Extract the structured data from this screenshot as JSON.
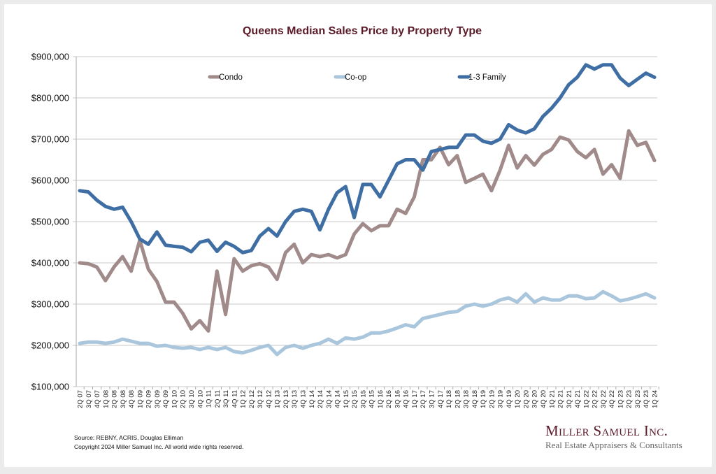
{
  "chart_data": {
    "type": "line",
    "title": "Queens Median Sales Price by Property Type",
    "xlabel": "",
    "ylabel": "",
    "ylim": [
      100000,
      900000
    ],
    "yticks": [
      100000,
      200000,
      300000,
      400000,
      500000,
      600000,
      700000,
      800000,
      900000
    ],
    "ytick_labels": [
      "$100,000",
      "$200,000",
      "$300,000",
      "$400,000",
      "$500,000",
      "$600,000",
      "$700,000",
      "$800,000",
      "$900,000"
    ],
    "grid": true,
    "legend_position": "top",
    "categories": [
      "2Q 07",
      "3Q 07",
      "4Q 07",
      "1Q 08",
      "2Q 08",
      "3Q 08",
      "4Q 08",
      "1Q 09",
      "2Q 09",
      "3Q 09",
      "4Q 09",
      "1Q 10",
      "2Q 10",
      "3Q 10",
      "4Q 10",
      "1Q 11",
      "2Q 11",
      "3Q 11",
      "4Q 11",
      "1Q 12",
      "2Q 12",
      "3Q 12",
      "4Q 12",
      "1Q 13",
      "2Q 13",
      "3Q 13",
      "4Q 13",
      "1Q 14",
      "2Q 14",
      "3Q 14",
      "4Q 14",
      "1Q 15",
      "2Q 15",
      "3Q 15",
      "4Q 15",
      "1Q 16",
      "2Q 16",
      "3Q 16",
      "4Q 16",
      "1Q 17",
      "2Q 17",
      "3Q 17",
      "4Q 17",
      "1Q 18",
      "2Q 18",
      "3Q 18",
      "4Q 18",
      "1Q 19",
      "2Q 19",
      "3Q 19",
      "4Q 19",
      "1Q 20",
      "2Q 20",
      "3Q 20",
      "4Q 20",
      "1Q 21",
      "2Q 21",
      "3Q 21",
      "4Q 21",
      "1Q 22",
      "2Q 22",
      "3Q 22",
      "4Q 22",
      "1Q 23",
      "2Q 23",
      "3Q 23",
      "4Q 23",
      "1Q 24"
    ],
    "series": [
      {
        "name": "Condo",
        "color": "#a08a8a",
        "values": [
          400000,
          398000,
          390000,
          357000,
          390000,
          415000,
          380000,
          455000,
          385000,
          355000,
          305000,
          305000,
          278000,
          240000,
          260000,
          235000,
          380000,
          275000,
          410000,
          380000,
          393000,
          398000,
          390000,
          360000,
          425000,
          445000,
          400000,
          420000,
          415000,
          420000,
          412000,
          420000,
          470000,
          495000,
          478000,
          490000,
          490000,
          530000,
          520000,
          560000,
          650000,
          650000,
          680000,
          638000,
          660000,
          595000,
          605000,
          615000,
          575000,
          625000,
          685000,
          630000,
          660000,
          637000,
          663000,
          675000,
          705000,
          698000,
          670000,
          655000,
          675000,
          615000,
          638000,
          605000,
          720000,
          685000,
          692000,
          648000
        ]
      },
      {
        "name": "Co-op",
        "color": "#a9c6dc",
        "values": [
          205000,
          208000,
          208000,
          205000,
          208000,
          215000,
          210000,
          205000,
          205000,
          198000,
          200000,
          195000,
          193000,
          195000,
          190000,
          195000,
          190000,
          195000,
          185000,
          182000,
          188000,
          195000,
          200000,
          178000,
          195000,
          200000,
          193000,
          200000,
          205000,
          215000,
          205000,
          218000,
          215000,
          220000,
          230000,
          230000,
          235000,
          242000,
          250000,
          245000,
          265000,
          270000,
          275000,
          280000,
          282000,
          295000,
          300000,
          295000,
          300000,
          310000,
          315000,
          305000,
          325000,
          305000,
          315000,
          310000,
          310000,
          320000,
          320000,
          313000,
          315000,
          330000,
          320000,
          308000,
          312000,
          318000,
          325000,
          315000
        ]
      },
      {
        "name": "1-3 Family",
        "color": "#3e6ea3",
        "values": [
          575000,
          572000,
          552000,
          537000,
          530000,
          535000,
          500000,
          458000,
          445000,
          475000,
          443000,
          440000,
          438000,
          427000,
          450000,
          455000,
          428000,
          450000,
          440000,
          425000,
          430000,
          465000,
          483000,
          465000,
          500000,
          525000,
          530000,
          525000,
          480000,
          530000,
          570000,
          585000,
          510000,
          590000,
          590000,
          560000,
          600000,
          640000,
          650000,
          650000,
          625000,
          670000,
          675000,
          680000,
          680000,
          710000,
          710000,
          695000,
          690000,
          700000,
          735000,
          722000,
          715000,
          725000,
          755000,
          775000,
          800000,
          832000,
          850000,
          880000,
          870000,
          880000,
          880000,
          848000,
          830000,
          845000,
          860000,
          850000
        ]
      }
    ]
  },
  "footer": {
    "source": "Source: REBNY, ACRIS, Douglas Elliman",
    "copyright": "Copyright 2024 Miller Samuel Inc.  All world wide rights reserved."
  },
  "logo": {
    "name": "Miller Samuel Inc.",
    "tagline": "Real Estate Appraisers & Consultants"
  }
}
